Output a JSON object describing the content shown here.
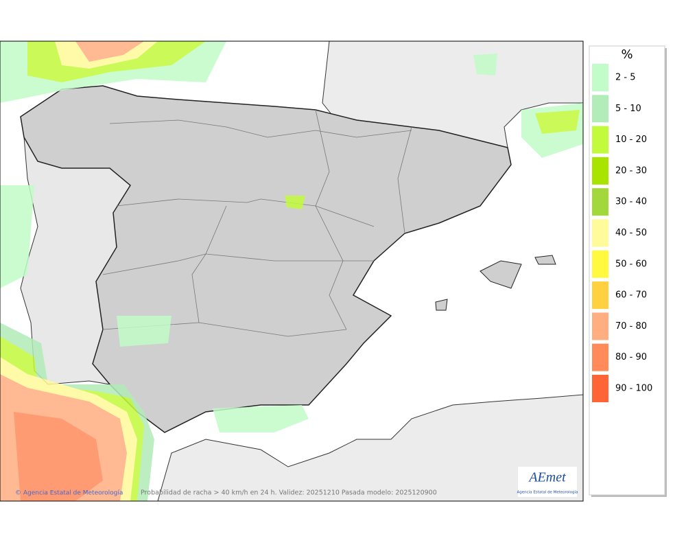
{
  "legend": {
    "title": "%",
    "items": [
      {
        "label": "2 - 5",
        "color": "#c2fcc8"
      },
      {
        "label": "5 - 10",
        "color": "#b2ecb8"
      },
      {
        "label": "10 - 20",
        "color": "#c2fa3c"
      },
      {
        "label": "20 - 30",
        "color": "#a8e400"
      },
      {
        "label": "30 - 40",
        "color": "#a2d83c"
      },
      {
        "label": "40 - 50",
        "color": "#fffa9a"
      },
      {
        "label": "50 - 60",
        "color": "#fffa40"
      },
      {
        "label": "60 - 70",
        "color": "#ffd040"
      },
      {
        "label": "70 - 80",
        "color": "#ffae82"
      },
      {
        "label": "80 - 90",
        "color": "#ff8a5a"
      },
      {
        "label": "90 - 100",
        "color": "#ff6436"
      }
    ]
  },
  "footer": {
    "credit": "© Agencia Estatal de Meteorología",
    "caption": "Probabilidad de racha > 40 km/h en 24 h. Validez: 20251210 Pasada modelo: 2025120900"
  },
  "logo": {
    "name": "AEmet",
    "subtitle": "Agencia Estatal de Meteorología"
  }
}
